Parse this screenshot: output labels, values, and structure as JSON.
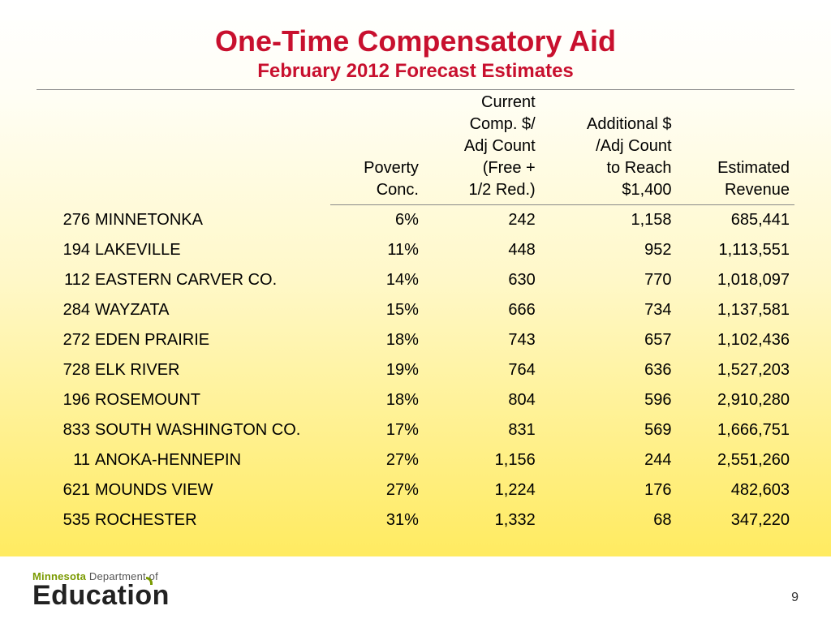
{
  "title": "One-Time Compensatory Aid",
  "subtitle": "February 2012 Forecast Estimates",
  "columns": {
    "poverty": "Poverty\nConc.",
    "current": "Current\nComp. $/\nAdj Count\n(Free +\n1/2 Red.)",
    "additional": "Additional $\n/Adj Count\nto Reach\n$1,400",
    "revenue": "Estimated\nRevenue"
  },
  "rows": [
    {
      "id": "276",
      "name": "MINNETONKA",
      "poverty": "6%",
      "current": "242",
      "additional": "1,158",
      "revenue": "685,441"
    },
    {
      "id": "194",
      "name": "LAKEVILLE",
      "poverty": "11%",
      "current": "448",
      "additional": "952",
      "revenue": "1,113,551"
    },
    {
      "id": "112",
      "name": "EASTERN CARVER CO.",
      "poverty": "14%",
      "current": "630",
      "additional": "770",
      "revenue": "1,018,097"
    },
    {
      "id": "284",
      "name": "WAYZATA",
      "poverty": "15%",
      "current": "666",
      "additional": "734",
      "revenue": "1,137,581"
    },
    {
      "id": "272",
      "name": "EDEN PRAIRIE",
      "poverty": "18%",
      "current": "743",
      "additional": "657",
      "revenue": "1,102,436"
    },
    {
      "id": "728",
      "name": "ELK RIVER",
      "poverty": "19%",
      "current": "764",
      "additional": "636",
      "revenue": "1,527,203"
    },
    {
      "id": "196",
      "name": "ROSEMOUNT",
      "poverty": "18%",
      "current": "804",
      "additional": "596",
      "revenue": "2,910,280"
    },
    {
      "id": "833",
      "name": "SOUTH WASHINGTON CO.",
      "poverty": "17%",
      "current": "831",
      "additional": "569",
      "revenue": "1,666,751"
    },
    {
      "id": "11",
      "name": "ANOKA-HENNEPIN",
      "poverty": "27%",
      "current": "1,156",
      "additional": "244",
      "revenue": "2,551,260"
    },
    {
      "id": "621",
      "name": "MOUNDS VIEW",
      "poverty": "27%",
      "current": "1,224",
      "additional": "176",
      "revenue": "482,603"
    },
    {
      "id": "535",
      "name": "ROCHESTER",
      "poverty": "31%",
      "current": "1,332",
      "additional": "68",
      "revenue": "347,220"
    }
  ],
  "logo": {
    "mn": "Minnesota",
    "dept": "Department of",
    "word": "Education"
  },
  "page_number": "9",
  "style": {
    "title_color": "#c8102e",
    "title_fontsize": 36,
    "subtitle_fontsize": 24,
    "body_fontsize": 20,
    "rule_color": "#888888",
    "background_gradient": [
      "#ffffff",
      "#fffef5",
      "#fff8c8",
      "#ffec6a",
      "#ffe84a"
    ],
    "footer_bg": "#ffffff",
    "logo_green": "#7a9a01",
    "logo_word_color": "#222222",
    "column_widths": {
      "id": 72,
      "name": 290
    }
  }
}
